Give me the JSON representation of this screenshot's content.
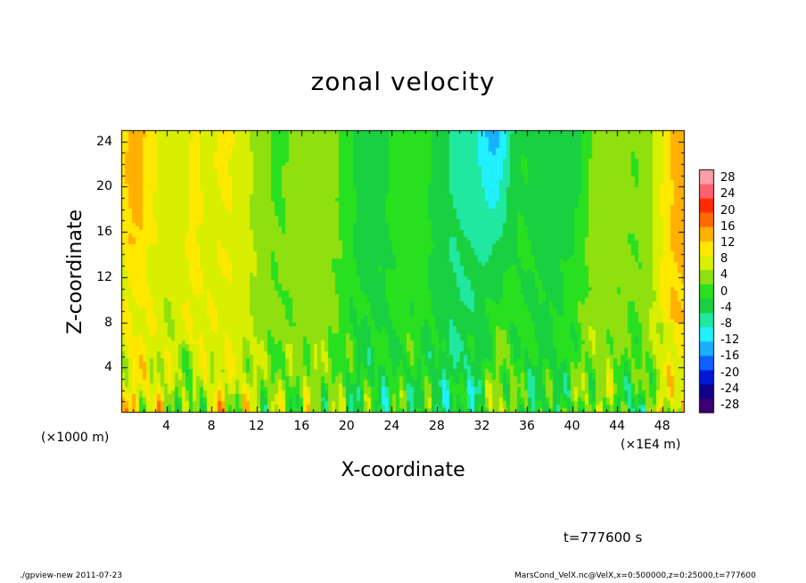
{
  "chart_data": {
    "type": "heatmap",
    "title": "zonal velocity",
    "xlabel": "X-coordinate",
    "ylabel": "Z-coordinate",
    "x_unit_label": "(×1000 m)",
    "x_unit_label_right": "(×1E4 m)",
    "x_ticks": [
      "4",
      "8",
      "12",
      "16",
      "20",
      "24",
      "28",
      "32",
      "36",
      "40",
      "44",
      "48"
    ],
    "y_ticks": [
      "4",
      "8",
      "12",
      "16",
      "20",
      "24"
    ],
    "xlim": [
      0,
      50
    ],
    "ylim": [
      0,
      25
    ],
    "colorbar": {
      "ticks": [
        "28",
        "24",
        "20",
        "16",
        "12",
        "8",
        "4",
        "0",
        "-4",
        "-8",
        "-12",
        "-16",
        "-20",
        "-24",
        "-28"
      ],
      "range": [
        -30,
        30
      ]
    },
    "annotation_time": "t=777600 s",
    "footer_left": "./gpview-new  2011-07-23",
    "footer_right": "MarsCond_VelX.nc@VelX,x=0:500000,z=0:25000,t=777600"
  }
}
